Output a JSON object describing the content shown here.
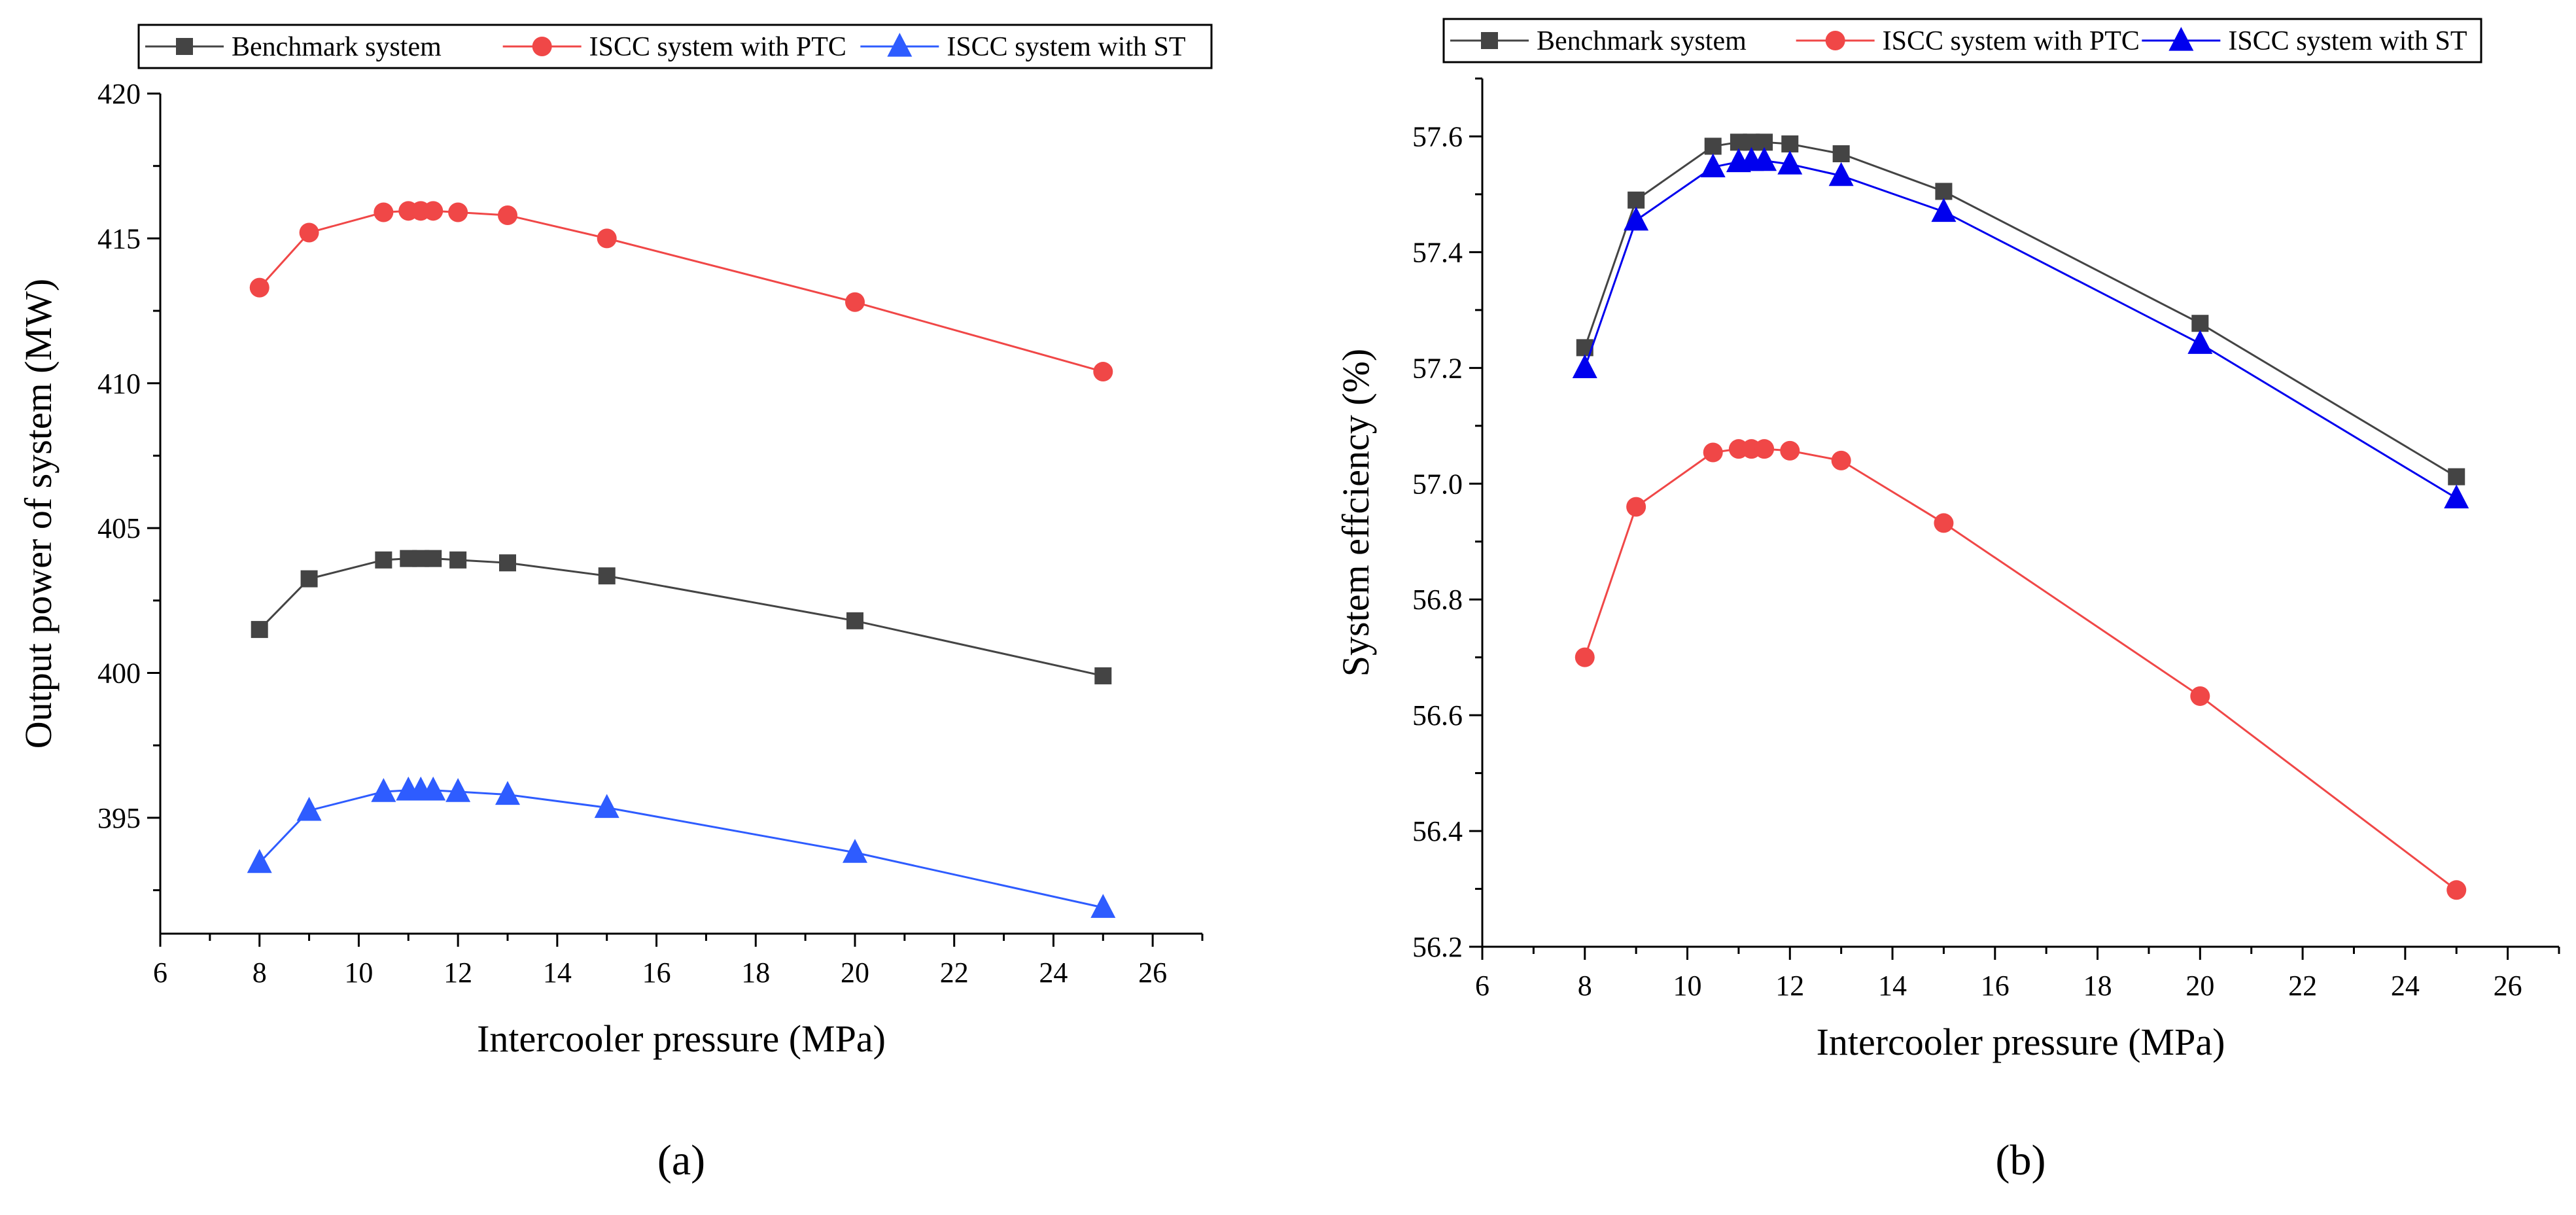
{
  "chart_data": [
    {
      "type": "line",
      "panel_label": "(a)",
      "title": "",
      "xlabel": "Intercooler  pressure (MPa)",
      "ylabel": "Output power of system (MW)",
      "xlim": [
        6,
        27
      ],
      "ylim": [
        391,
        420
      ],
      "xticks": [
        6,
        8,
        10,
        12,
        14,
        16,
        18,
        20,
        22,
        24,
        26
      ],
      "yticks": [
        395,
        400,
        405,
        410,
        415,
        420
      ],
      "xtick_labels": [
        "6",
        "8",
        "10",
        "12",
        "14",
        "16",
        "18",
        "20",
        "22",
        "24",
        "26"
      ],
      "ytick_labels": [
        "395",
        "400",
        "405",
        "410",
        "415",
        "420"
      ],
      "legend_position": "top",
      "x": [
        8,
        9,
        10.5,
        11,
        11.25,
        11.5,
        12,
        13,
        15,
        20,
        25
      ],
      "series": [
        {
          "name": "Benchmark system",
          "marker": "square",
          "color": "#444444",
          "line_color": "#444444",
          "values": [
            401.5,
            403.25,
            403.9,
            403.95,
            403.95,
            403.95,
            403.9,
            403.8,
            403.35,
            401.8,
            399.9
          ]
        },
        {
          "name": "ISCC system with PTC",
          "marker": "circle",
          "color": "#f04747",
          "line_color": "#f04747",
          "values": [
            413.3,
            415.2,
            415.9,
            415.95,
            415.95,
            415.95,
            415.9,
            415.8,
            415.0,
            412.8,
            410.4
          ]
        },
        {
          "name": "ISCC system with ST",
          "marker": "triangle",
          "color": "#2e5cff",
          "line_color": "#2e5cff",
          "values": [
            393.45,
            395.25,
            395.9,
            395.95,
            395.95,
            395.95,
            395.9,
            395.8,
            395.35,
            393.8,
            391.9
          ]
        }
      ]
    },
    {
      "type": "line",
      "panel_label": "(b)",
      "title": "",
      "xlabel": "Intercooler  pressure (MPa)",
      "ylabel": "System effciency (%)",
      "xlim": [
        6,
        27
      ],
      "ylim": [
        56.2,
        57.7
      ],
      "xticks": [
        6,
        8,
        10,
        12,
        14,
        16,
        18,
        20,
        22,
        24,
        26
      ],
      "yticks": [
        56.2,
        56.4,
        56.6,
        56.8,
        57.0,
        57.2,
        57.4,
        57.6
      ],
      "xtick_labels": [
        "6",
        "8",
        "10",
        "12",
        "14",
        "16",
        "18",
        "20",
        "22",
        "24",
        "26"
      ],
      "ytick_labels": [
        "56.2",
        "56.4",
        "56.6",
        "56.8",
        "57.0",
        "57.2",
        "57.4",
        "57.6"
      ],
      "legend_position": "top",
      "x": [
        8,
        9,
        10.5,
        11,
        11.25,
        11.5,
        12,
        13,
        15,
        20,
        25
      ],
      "series": [
        {
          "name": "Benchmark system",
          "marker": "square",
          "color": "#444444",
          "line_color": "#444444",
          "values": [
            57.235,
            57.49,
            57.583,
            57.59,
            57.59,
            57.59,
            57.587,
            57.57,
            57.505,
            57.277,
            57.012
          ]
        },
        {
          "name": "ISCC system with PTC",
          "marker": "circle",
          "color": "#f04747",
          "line_color": "#f04747",
          "values": [
            56.7,
            56.96,
            57.054,
            57.06,
            57.06,
            57.06,
            57.057,
            57.04,
            56.932,
            56.633,
            56.298
          ]
        },
        {
          "name": "ISCC system with ST",
          "marker": "triangle",
          "color": "#0000ee",
          "line_color": "#0000ee",
          "values": [
            57.2,
            57.455,
            57.547,
            57.556,
            57.558,
            57.558,
            57.552,
            57.532,
            57.47,
            57.242,
            56.975
          ]
        }
      ]
    }
  ]
}
